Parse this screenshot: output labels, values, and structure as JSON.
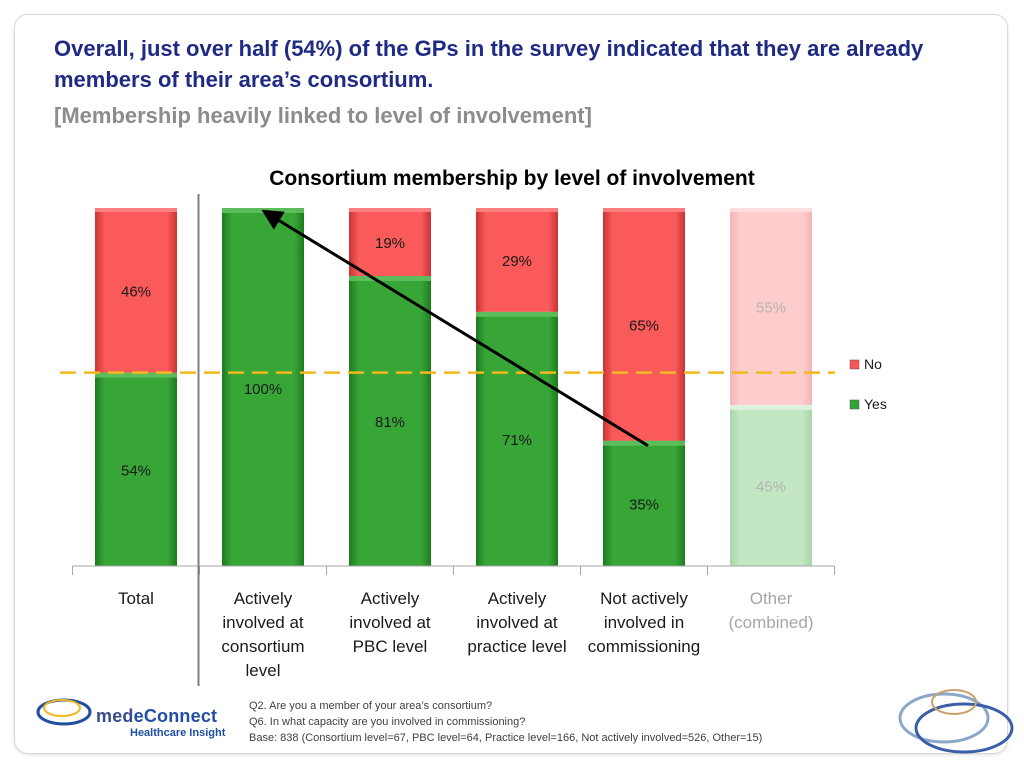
{
  "headline": "Overall, just over half (54%) of the GPs in the survey indicated that they are already members of their area’s consortium.",
  "subhead": "[Membership heavily linked to level of involvement]",
  "chart_data": {
    "type": "bar",
    "stacked": true,
    "title": "Consortium membership by level of involvement",
    "categories": [
      [
        "Total"
      ],
      [
        "Actively",
        "involved at",
        "consortium",
        "level"
      ],
      [
        "Actively",
        "involved at",
        "PBC level"
      ],
      [
        "Actively",
        "involved at",
        "practice level"
      ],
      [
        "Not actively",
        "involved in",
        "commissioning"
      ],
      [
        "Other",
        "(combined)"
      ]
    ],
    "series": [
      {
        "name": "Yes",
        "color": "#33a333",
        "values": [
          54,
          100,
          81,
          71,
          35,
          45
        ],
        "labels": [
          "54%",
          "100%",
          "81%",
          "71%",
          "35%",
          "45%"
        ]
      },
      {
        "name": "No",
        "color": "#f85555",
        "values": [
          46,
          0,
          19,
          29,
          65,
          55
        ],
        "labels": [
          "46%",
          "",
          "19%",
          "29%",
          "65%",
          "55%"
        ]
      }
    ],
    "faded_categories": [
      5
    ],
    "legend_position": "right",
    "reference_line": {
      "value": 54,
      "color": "#f2b81f",
      "style": "dashed"
    },
    "trend_arrow": {
      "from_category": 4,
      "to_category": 1
    },
    "ylim": [
      0,
      100
    ]
  },
  "footnotes": {
    "q2": "Q2. Are you a member of your area’s consortium?",
    "q6": "Q6. In what capacity are you involved in commissioning?",
    "base": "Base: 838 (Consortium level=67, PBC level=64, Practice level=166, Not actively involved=526, Other=15)"
  },
  "logo": {
    "name_part1": "med",
    "name_part2": "eConnect",
    "tagline": "Healthcare Insight"
  }
}
